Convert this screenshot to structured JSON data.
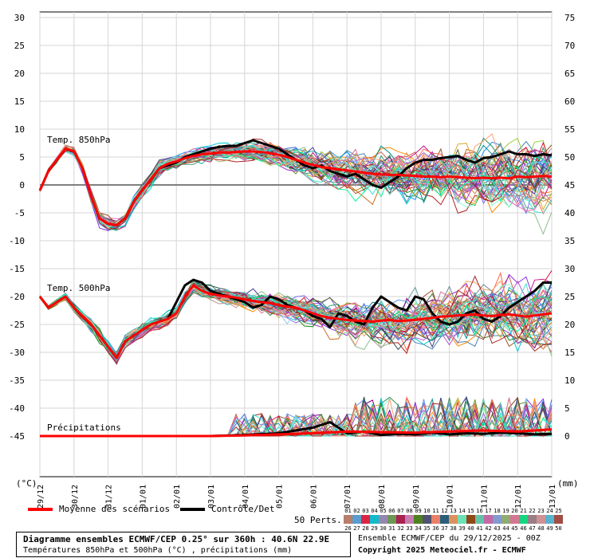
{
  "y_units_left": "(°C)",
  "y_units_right": "(mm)",
  "panel_labels": {
    "t850": "Temp. 850hPa",
    "t500": "Temp. 500hPa",
    "precip": "Précipitations"
  },
  "legend": {
    "mean": "Moyenne des scénarios",
    "control": "Contrôle/Det",
    "perts": "50 Perts."
  },
  "info_box": {
    "line1": "Diagramme ensembles ECMWF/CEP 0.25° sur 360h : 40.6N 22.9E",
    "line2": "Températures 850hPa et 500hPa (°C) , précipitations (mm)"
  },
  "right_info": {
    "run": "Ensemble ECMWF/CEP du 29/12/2025 - 00Z",
    "copyright": "Copyright 2025 Meteociel.fr - ECMWF"
  },
  "perturbation_numbers": [
    "01",
    "02",
    "03",
    "04",
    "05",
    "06",
    "07",
    "08",
    "09",
    "10",
    "11",
    "12",
    "13",
    "14",
    "15",
    "16",
    "17",
    "18",
    "19",
    "20",
    "21",
    "22",
    "23",
    "24",
    "25",
    "26",
    "27",
    "28",
    "29",
    "30",
    "31",
    "32",
    "33",
    "34",
    "35",
    "36",
    "37",
    "38",
    "39",
    "40",
    "41",
    "42",
    "43",
    "44",
    "45",
    "46",
    "47",
    "48",
    "49",
    "50"
  ],
  "chart_data": {
    "type": "line",
    "x_labels": [
      "29/12",
      "30/12",
      "31/12",
      "01/01",
      "02/01",
      "03/01",
      "04/01",
      "05/01",
      "06/01",
      "07/01",
      "08/01",
      "09/01",
      "10/01",
      "11/01",
      "12/01",
      "13/01"
    ],
    "x_range_days": [
      0,
      15
    ],
    "y_left_ticks": [
      30,
      25,
      20,
      15,
      10,
      5,
      0,
      -5,
      -10,
      -15,
      -20,
      -25,
      -30,
      -35,
      -40,
      -45
    ],
    "y_right_ticks": [
      75,
      70,
      65,
      60,
      55,
      50,
      45,
      40,
      35,
      30,
      25,
      20,
      15,
      10,
      5,
      0
    ],
    "ylim_left": [
      -53,
      33
    ],
    "grid": true,
    "panels": [
      {
        "name": "Temp. 850hPa",
        "unit": "°C",
        "series": [
          {
            "name": "Moyenne des scénarios",
            "color": "#ff0000",
            "x": [
              0,
              0.25,
              0.5,
              0.75,
              1,
              1.25,
              1.5,
              1.75,
              2,
              2.25,
              2.5,
              2.75,
              3,
              3.25,
              3.5,
              3.75,
              4,
              4.25,
              4.5,
              4.75,
              5,
              5.25,
              5.5,
              5.75,
              6,
              6.25,
              6.5,
              6.75,
              7,
              7.25,
              7.5,
              7.75,
              8,
              8.25,
              8.5,
              8.75,
              9,
              9.25,
              9.5,
              9.75,
              10,
              10.25,
              10.5,
              10.75,
              11,
              11.25,
              11.5,
              11.75,
              12,
              12.25,
              12.5,
              12.75,
              13,
              13.25,
              13.5,
              13.75,
              14,
              14.25,
              14.5,
              14.75,
              15
            ],
            "y": [
              -1,
              2.5,
              4.5,
              6.5,
              6,
              3,
              -2,
              -6,
              -7,
              -7.2,
              -6,
              -3,
              -1,
              1,
              3,
              3.8,
              4.2,
              4.8,
              5.2,
              5.5,
              5.6,
              5.8,
              5.8,
              5.9,
              6,
              6,
              5.9,
              5.7,
              5.4,
              5,
              4.5,
              4,
              3.6,
              3.2,
              3,
              2.8,
              2.6,
              2.4,
              2.2,
              2,
              1.9,
              1.8,
              1.8,
              1.7,
              1.6,
              1.5,
              1.5,
              1.4,
              1.5,
              1.4,
              1.3,
              1.2,
              1.3,
              1.2,
              1.3,
              1.2,
              1.5,
              1.4,
              1.5,
              1.6,
              1.5
            ]
          },
          {
            "name": "Contrôle/Det",
            "color": "#000000",
            "x": [
              0,
              0.25,
              0.5,
              0.75,
              1,
              1.25,
              1.5,
              1.75,
              2,
              2.25,
              2.5,
              2.75,
              3,
              3.25,
              3.5,
              3.75,
              4,
              4.25,
              4.5,
              4.75,
              5,
              5.25,
              5.5,
              5.75,
              6,
              6.25,
              6.5,
              6.75,
              7,
              7.25,
              7.5,
              7.75,
              8,
              8.25,
              8.5,
              8.75,
              9,
              9.25,
              9.5,
              9.75,
              10,
              10.25,
              10.5,
              10.75,
              11,
              11.25,
              11.5,
              11.75,
              12,
              12.25,
              12.5,
              12.75,
              13,
              13.25,
              13.5,
              13.75,
              14,
              14.25,
              14.5,
              14.75,
              15
            ],
            "y": [
              -1,
              2.5,
              4.5,
              6.5,
              6,
              3,
              -2,
              -6,
              -7,
              -7.2,
              -6,
              -3,
              -1,
              1,
              3,
              3.5,
              4,
              5,
              5.5,
              6,
              6.5,
              6.8,
              7,
              7,
              7.5,
              8,
              7.5,
              7,
              6.5,
              5.5,
              4.5,
              3.5,
              3,
              3.5,
              2.5,
              2,
              1.5,
              2,
              1,
              0,
              -0.5,
              0.5,
              1.5,
              3,
              4,
              4.5,
              4.5,
              4.8,
              5,
              5.2,
              4.5,
              4,
              4.8,
              5,
              5.5,
              6,
              5.5,
              5.5,
              5.2,
              5.5,
              5.3
            ]
          }
        ]
      },
      {
        "name": "Temp. 500hPa",
        "unit": "°C",
        "series": [
          {
            "name": "Moyenne des scénarios",
            "color": "#ff0000",
            "x": [
              0,
              0.25,
              0.5,
              0.75,
              1,
              1.25,
              1.5,
              1.75,
              2,
              2.25,
              2.5,
              2.75,
              3,
              3.25,
              3.5,
              3.75,
              4,
              4.25,
              4.5,
              4.75,
              5,
              5.25,
              5.5,
              5.75,
              6,
              6.25,
              6.5,
              6.75,
              7,
              7.25,
              7.5,
              7.75,
              8,
              8.25,
              8.5,
              8.75,
              9,
              9.25,
              9.5,
              9.75,
              10,
              10.25,
              10.5,
              10.75,
              11,
              11.25,
              11.5,
              11.75,
              12,
              12.25,
              12.5,
              12.75,
              13,
              13.25,
              13.5,
              13.75,
              14,
              14.25,
              14.5,
              14.75,
              15
            ],
            "y": [
              -20,
              -22,
              -21,
              -20,
              -22,
              -23.5,
              -25,
              -27,
              -29,
              -31,
              -28,
              -27,
              -26,
              -25,
              -24.5,
              -24,
              -23,
              -20,
              -18,
              -19,
              -19.5,
              -19.8,
              -20,
              -20.2,
              -20.5,
              -20.8,
              -21,
              -21.2,
              -21.5,
              -21.8,
              -22,
              -22.5,
              -23,
              -23.5,
              -23.8,
              -24,
              -24.2,
              -24.3,
              -24.4,
              -24.5,
              -24.3,
              -24.2,
              -24.4,
              -24.3,
              -24.2,
              -24,
              -23.8,
              -23.6,
              -23.5,
              -23.4,
              -23.3,
              -23.2,
              -23.4,
              -23.5,
              -23.3,
              -23.2,
              -23.4,
              -23.6,
              -23.4,
              -23.2,
              -23
            ]
          },
          {
            "name": "Contrôle/Det",
            "color": "#000000",
            "x": [
              0,
              0.25,
              0.5,
              0.75,
              1,
              1.25,
              1.5,
              1.75,
              2,
              2.25,
              2.5,
              2.75,
              3,
              3.25,
              3.5,
              3.75,
              4,
              4.25,
              4.5,
              4.75,
              5,
              5.25,
              5.5,
              5.75,
              6,
              6.25,
              6.5,
              6.75,
              7,
              7.25,
              7.5,
              7.75,
              8,
              8.25,
              8.5,
              8.75,
              9,
              9.25,
              9.5,
              9.75,
              10,
              10.25,
              10.5,
              10.75,
              11,
              11.25,
              11.5,
              11.75,
              12,
              12.25,
              12.5,
              12.75,
              13,
              13.25,
              13.5,
              13.75,
              14,
              14.25,
              14.5,
              14.75,
              15
            ],
            "y": [
              -20,
              -22,
              -21,
              -20,
              -22,
              -23.5,
              -25,
              -27,
              -29,
              -31,
              -28,
              -27,
              -26,
              -25,
              -24.5,
              -24,
              -21,
              -18,
              -17,
              -17.5,
              -19,
              -19.5,
              -20,
              -20.5,
              -21,
              -22,
              -21.5,
              -20,
              -20.5,
              -21.5,
              -22,
              -22.5,
              -23.5,
              -24,
              -25.5,
              -23,
              -23.5,
              -24.5,
              -25,
              -22,
              -20,
              -21,
              -22,
              -22.5,
              -20,
              -20.5,
              -23,
              -24.5,
              -25,
              -24.5,
              -23,
              -22.5,
              -24,
              -24.5,
              -23.5,
              -22,
              -21,
              -20,
              -19,
              -17.5,
              -17.5
            ]
          }
        ]
      },
      {
        "name": "Précipitations",
        "unit": "mm",
        "series": [
          {
            "name": "Moyenne des scénarios",
            "color": "#ff0000",
            "x": [
              0,
              1,
              2,
              3,
              4,
              5,
              6,
              7,
              8,
              9,
              10,
              11,
              12,
              13,
              14,
              15
            ],
            "y": [
              0,
              0,
              0,
              0,
              0,
              0,
              0.1,
              0.3,
              0.5,
              0.8,
              0.7,
              0.6,
              0.8,
              1,
              0.8,
              1.2
            ]
          },
          {
            "name": "Contrôle/Det",
            "color": "#000000",
            "x": [
              0,
              1,
              2,
              3,
              4,
              5,
              6,
              7,
              8,
              8.5,
              9,
              9.5,
              10,
              10.5,
              11,
              11.5,
              12,
              12.5,
              13,
              13.5,
              14,
              14.5,
              15
            ],
            "y": [
              0,
              0,
              0,
              0,
              0,
              0,
              0.2,
              0.5,
              1.5,
              2.5,
              0.5,
              0.8,
              0.2,
              0.4,
              0.3,
              0.6,
              0.3,
              0.5,
              0.4,
              0.6,
              0.5,
              0.3,
              0.4
            ]
          }
        ]
      }
    ]
  }
}
